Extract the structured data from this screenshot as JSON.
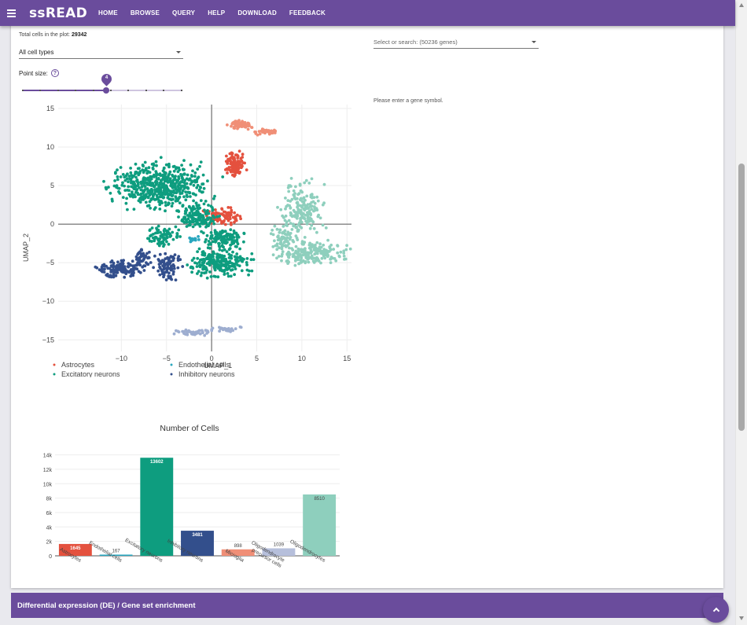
{
  "header": {
    "logo": "ssREAD",
    "nav": [
      "HOME",
      "BROWSE",
      "QUERY",
      "HELP",
      "DOWNLOAD",
      "FEEDBACK"
    ],
    "menu_icon": "hamburger-icon",
    "accent": "#6a4c9c"
  },
  "controls": {
    "total_label": "Total cells in the plot:",
    "total_value": "29342",
    "cell_type_select": "All cell types",
    "point_size_label": "Point size:",
    "point_size_value": 4,
    "point_size_min": 1,
    "point_size_max": 10,
    "gene_select_placeholder": "Select or search: (50236 genes)",
    "gene_hint": "Please enter a gene symbol."
  },
  "chart_data": [
    {
      "type": "scatter",
      "xlabel": "UMAP_1",
      "ylabel": "UMAP_2",
      "xlim": [
        -17,
        15.5
      ],
      "ylim": [
        -16.5,
        15.5
      ],
      "xticks": [
        -10,
        -5,
        0,
        5,
        10,
        15
      ],
      "yticks": [
        15,
        10,
        5,
        0,
        -5,
        -10,
        -15
      ],
      "tick_labels_x": [
        "−10",
        "−5",
        "0",
        "5",
        "10",
        "15"
      ],
      "tick_labels_y": [
        "15",
        "10",
        "5",
        "0",
        "−5",
        "−10",
        "−15"
      ],
      "legend": "bottom",
      "series": [
        {
          "name": "Astrocytes",
          "color": "#e4513e",
          "clusters": [
            {
              "cx": 2.7,
              "cy": 7.8,
              "rx": 0.9,
              "ry": 1.2,
              "n": 120
            },
            {
              "cx": 1.2,
              "cy": 1.0,
              "rx": 1.6,
              "ry": 0.9,
              "n": 100
            }
          ]
        },
        {
          "name": "Excitatory neurons",
          "color": "#0e9d7f",
          "clusters": [
            {
              "cx": -5.5,
              "cy": 5.0,
              "rx": 4.3,
              "ry": 2.5,
              "n": 520
            },
            {
              "cx": -1.5,
              "cy": 1.0,
              "rx": 1.8,
              "ry": 1.2,
              "n": 150
            },
            {
              "cx": 0.8,
              "cy": -5.0,
              "rx": 2.8,
              "ry": 1.5,
              "n": 230
            },
            {
              "cx": 1.3,
              "cy": -1.8,
              "rx": 1.8,
              "ry": 1.0,
              "n": 120
            },
            {
              "cx": -5.5,
              "cy": -1.5,
              "rx": 1.6,
              "ry": 1.2,
              "n": 80
            }
          ]
        },
        {
          "name": "Microglia",
          "color": "#f08f77",
          "clusters": [
            {
              "cx": 3.3,
              "cy": 12.8,
              "rx": 1.3,
              "ry": 0.5,
              "n": 70
            },
            {
              "cx": 6.0,
              "cy": 12.0,
              "rx": 1.1,
              "ry": 0.3,
              "n": 40
            }
          ]
        },
        {
          "name": "Oligodendrocytes",
          "color": "#8ecfbd",
          "clusters": [
            {
              "cx": 10.2,
              "cy": 2.0,
              "rx": 1.8,
              "ry": 3.0,
              "n": 180
            },
            {
              "cx": 11.0,
              "cy": -3.8,
              "rx": 3.6,
              "ry": 1.2,
              "n": 200
            },
            {
              "cx": 8.0,
              "cy": -1.5,
              "rx": 1.2,
              "ry": 1.2,
              "n": 60
            }
          ]
        },
        {
          "name": "Endothelial cells",
          "color": "#2aa7bf",
          "clusters": [
            {
              "cx": -2.0,
              "cy": -2.0,
              "rx": 0.5,
              "ry": 0.3,
              "n": 15
            }
          ]
        },
        {
          "name": "Inhibitory neurons",
          "color": "#334f8c",
          "clusters": [
            {
              "cx": -10.0,
              "cy": -5.8,
              "rx": 2.5,
              "ry": 0.9,
              "n": 140
            },
            {
              "cx": -4.8,
              "cy": -5.2,
              "rx": 1.2,
              "ry": 1.5,
              "n": 90
            },
            {
              "cx": -7.6,
              "cy": -4.3,
              "rx": 0.8,
              "ry": 1.0,
              "n": 40
            }
          ]
        },
        {
          "name": "Oligodendrocyte precursor cells",
          "color": "#9eaed0",
          "clusters": [
            {
              "cx": -2.0,
              "cy": -14.1,
              "rx": 1.6,
              "ry": 0.35,
              "n": 45
            },
            {
              "cx": 1.6,
              "cy": -13.6,
              "rx": 1.3,
              "ry": 0.3,
              "n": 30
            }
          ]
        }
      ]
    },
    {
      "type": "bar",
      "title": "Number of Cells",
      "categories": [
        "Astrocytes",
        "Endothelial cells",
        "Excitatory neurons",
        "Inhibitory neurons",
        "Microglia",
        "Oligodendrocyte\nprecursor cells",
        "Oligodendrocytes"
      ],
      "values": [
        1645,
        167,
        13602,
        3481,
        898,
        1039,
        8510
      ],
      "colors": [
        "#e4513e",
        "#2aa7bf",
        "#0e9d7f",
        "#334f8c",
        "#f08f77",
        "#b6bfdb",
        "#8ecfbd"
      ],
      "ylim": [
        0,
        14500
      ],
      "yticks": [
        0,
        2000,
        4000,
        6000,
        8000,
        10000,
        12000,
        14000
      ],
      "ytick_labels": [
        "0",
        "2k",
        "4k",
        "6k",
        "8k",
        "10k",
        "12k",
        "14k"
      ]
    }
  ],
  "footer": {
    "section_title": "Differential expression (DE) / Gene set enrichment",
    "fab_icon": "chevron-up-icon"
  }
}
